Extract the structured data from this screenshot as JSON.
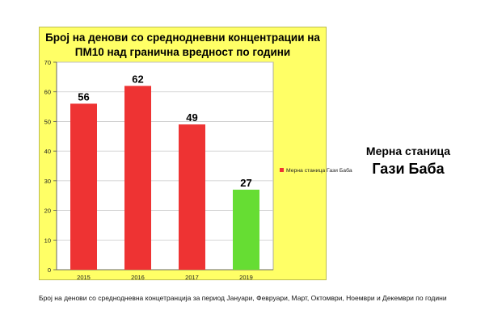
{
  "colors": {
    "panel_bg": "#ffff66",
    "plot_bg": "#ffffff",
    "bar_red": "#ee3333",
    "bar_green": "#66dd33",
    "grid": "#c9c9c9"
  },
  "chart_data": {
    "type": "bar",
    "title_lines": [
      "Број на денови со средноднeвни концентрации на",
      "ПМ10 над гранична вредност по години"
    ],
    "categories": [
      "2015",
      "2016",
      "2017",
      "2019"
    ],
    "values": [
      56,
      62,
      49,
      27
    ],
    "bar_colors": [
      "#ee3333",
      "#ee3333",
      "#ee3333",
      "#66dd33"
    ],
    "ylim": [
      0,
      70
    ],
    "yticks": [
      0,
      10,
      20,
      30,
      40,
      50,
      60,
      70
    ],
    "grid": true,
    "legend": {
      "position": "right",
      "label": "Мерна станица Гази Баба",
      "color": "#ee3333"
    }
  },
  "side_title": {
    "line1": "Мерна станица",
    "line2": "Гази Баба"
  },
  "caption": "Број на денови со средноднeвна концетранција за период Јануари, Февруари, Март, Октомври, Ноември и Декември по години"
}
